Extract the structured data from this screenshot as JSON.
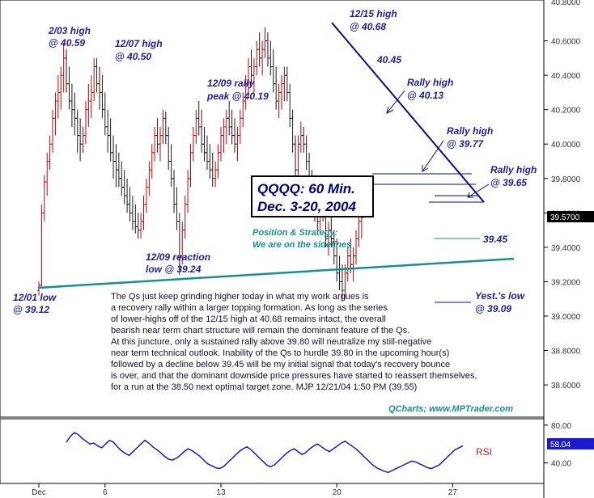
{
  "chart_data": [
    {
      "type": "ohlc",
      "title": "QQQQ: 60 Min.",
      "subtitle": "Dec. 3-20, 2004",
      "ylim": [
        38.45,
        40.8
      ],
      "y_ticks": [
        "40.6000",
        "40.4000",
        "40.2000",
        "40.0000",
        "39.8000",
        "39.6000",
        "39.4000",
        "39.2000",
        "39.0000",
        "38.8000",
        "38.6000"
      ],
      "y_tick_values": [
        40.6,
        40.4,
        40.2,
        40.0,
        39.8,
        39.6,
        39.4,
        39.2,
        39.0,
        38.8,
        38.6
      ],
      "top_tick_partial": "40.8000",
      "last_price": "39.5700",
      "x_ticks": [
        "Dec",
        "6",
        "13",
        "20",
        "27"
      ],
      "x_tick_bars": [
        0,
        24,
        66,
        108,
        150
      ],
      "bars_total": 160,
      "series": [
        {
          "points": [
            [
              39.15,
              39.2,
              39.12,
              39.18
            ],
            [
              39.18,
              39.65,
              39.17,
              39.6
            ],
            [
              39.6,
              39.82,
              39.55,
              39.78
            ],
            [
              39.78,
              39.95,
              39.7,
              39.9
            ],
            [
              39.9,
              40.05,
              39.85,
              40.0
            ],
            [
              40.0,
              40.2,
              39.95,
              40.15
            ],
            [
              40.15,
              40.3,
              40.05,
              40.25
            ],
            [
              40.25,
              40.4,
              40.15,
              40.3
            ],
            [
              40.3,
              40.45,
              40.2,
              40.4
            ],
            [
              40.4,
              40.59,
              40.3,
              40.5
            ],
            [
              40.5,
              40.55,
              40.3,
              40.35
            ],
            [
              40.35,
              40.45,
              40.2,
              40.25
            ],
            [
              40.25,
              40.35,
              40.1,
              40.2
            ],
            [
              40.2,
              40.3,
              40.05,
              40.15
            ],
            [
              40.15,
              40.2,
              39.95,
              40.05
            ],
            [
              40.05,
              40.15,
              39.9,
              40.0
            ],
            [
              40.0,
              40.1,
              39.95,
              40.05
            ],
            [
              40.05,
              40.25,
              40.0,
              40.2
            ],
            [
              40.2,
              40.35,
              40.1,
              40.25
            ],
            [
              40.25,
              40.4,
              40.15,
              40.3
            ],
            [
              40.3,
              40.5,
              40.25,
              40.45
            ],
            [
              40.45,
              40.5,
              40.3,
              40.35
            ],
            [
              40.35,
              40.45,
              40.2,
              40.3
            ],
            [
              40.3,
              40.4,
              40.15,
              40.2
            ],
            [
              40.2,
              40.3,
              40.05,
              40.1
            ],
            [
              40.1,
              40.2,
              39.95,
              40.05
            ],
            [
              40.05,
              40.15,
              39.9,
              39.95
            ],
            [
              39.95,
              40.05,
              39.8,
              39.9
            ],
            [
              39.9,
              40.0,
              39.75,
              39.85
            ],
            [
              39.85,
              39.95,
              39.75,
              39.8
            ],
            [
              39.8,
              39.9,
              39.7,
              39.75
            ],
            [
              39.75,
              39.85,
              39.65,
              39.7
            ],
            [
              39.7,
              39.8,
              39.6,
              39.65
            ],
            [
              39.65,
              39.75,
              39.55,
              39.6
            ],
            [
              39.6,
              39.7,
              39.5,
              39.55
            ],
            [
              39.55,
              39.65,
              39.48,
              39.52
            ],
            [
              39.52,
              39.6,
              39.45,
              39.5
            ],
            [
              39.5,
              39.6,
              39.45,
              39.55
            ],
            [
              39.55,
              39.7,
              39.5,
              39.65
            ],
            [
              39.65,
              39.8,
              39.6,
              39.75
            ],
            [
              39.75,
              39.9,
              39.7,
              39.85
            ],
            [
              39.85,
              40.0,
              39.8,
              39.95
            ],
            [
              39.95,
              40.1,
              39.9,
              40.05
            ],
            [
              40.05,
              40.15,
              39.95,
              40.0
            ],
            [
              40.0,
              40.1,
              39.9,
              40.05
            ],
            [
              40.05,
              40.2,
              40.0,
              40.15
            ],
            [
              40.15,
              40.19,
              40.0,
              40.05
            ],
            [
              40.05,
              40.1,
              39.85,
              39.9
            ],
            [
              39.9,
              40.0,
              39.75,
              39.8
            ],
            [
              39.8,
              39.85,
              39.6,
              39.65
            ],
            [
              39.65,
              39.75,
              39.5,
              39.55
            ],
            [
              39.55,
              39.6,
              39.24,
              39.35
            ],
            [
              39.35,
              39.55,
              39.3,
              39.5
            ],
            [
              39.5,
              39.7,
              39.45,
              39.65
            ],
            [
              39.65,
              39.85,
              39.6,
              39.8
            ],
            [
              39.8,
              40.0,
              39.75,
              39.95
            ],
            [
              39.95,
              40.1,
              39.9,
              40.05
            ],
            [
              40.05,
              40.2,
              40.0,
              40.15
            ],
            [
              40.15,
              40.25,
              40.05,
              40.1
            ],
            [
              40.1,
              40.2,
              39.95,
              40.0
            ],
            [
              40.0,
              40.1,
              39.9,
              39.95
            ],
            [
              39.95,
              40.05,
              39.85,
              39.9
            ],
            [
              39.9,
              40.0,
              39.8,
              39.85
            ],
            [
              39.85,
              39.95,
              39.75,
              39.8
            ],
            [
              39.8,
              39.9,
              39.75,
              39.85
            ],
            [
              39.85,
              40.0,
              39.8,
              39.95
            ],
            [
              39.95,
              40.1,
              39.9,
              40.05
            ],
            [
              40.05,
              40.15,
              39.95,
              40.1
            ],
            [
              40.1,
              40.2,
              40.0,
              40.15
            ],
            [
              40.15,
              40.25,
              40.05,
              40.1
            ],
            [
              40.1,
              40.2,
              40.0,
              40.05
            ],
            [
              40.05,
              40.15,
              39.95,
              40.0
            ],
            [
              40.0,
              40.1,
              39.9,
              40.05
            ],
            [
              40.05,
              40.2,
              40.0,
              40.15
            ],
            [
              40.15,
              40.3,
              40.1,
              40.25
            ],
            [
              40.25,
              40.4,
              40.2,
              40.35
            ],
            [
              40.35,
              40.5,
              40.3,
              40.45
            ],
            [
              40.45,
              40.55,
              40.35,
              40.4
            ],
            [
              40.4,
              40.5,
              40.3,
              40.45
            ],
            [
              40.45,
              40.6,
              40.4,
              40.55
            ],
            [
              40.55,
              40.65,
              40.45,
              40.5
            ],
            [
              40.5,
              40.6,
              40.4,
              40.55
            ],
            [
              40.55,
              40.68,
              40.5,
              40.6
            ],
            [
              40.6,
              40.65,
              40.45,
              40.5
            ],
            [
              40.5,
              40.6,
              40.4,
              40.45
            ],
            [
              40.45,
              40.55,
              40.3,
              40.35
            ],
            [
              40.35,
              40.45,
              40.2,
              40.25
            ],
            [
              40.25,
              40.35,
              40.15,
              40.3
            ],
            [
              40.3,
              40.4,
              40.2,
              40.35
            ],
            [
              40.35,
              40.45,
              40.25,
              40.4
            ],
            [
              40.4,
              40.45,
              40.25,
              40.3
            ],
            [
              40.3,
              40.35,
              40.1,
              40.15
            ],
            [
              40.15,
              40.2,
              39.95,
              40.0
            ],
            [
              40.0,
              40.05,
              39.8,
              39.85
            ],
            [
              39.85,
              40.05,
              39.8,
              40.0
            ],
            [
              40.0,
              40.13,
              39.95,
              40.05
            ],
            [
              40.05,
              40.1,
              39.95,
              40.0
            ],
            [
              40.0,
              40.05,
              39.85,
              39.9
            ],
            [
              39.9,
              39.95,
              39.75,
              39.8
            ],
            [
              39.8,
              39.85,
              39.65,
              39.7
            ],
            [
              39.7,
              39.75,
              39.55,
              39.6
            ],
            [
              39.6,
              39.7,
              39.5,
              39.55
            ],
            [
              39.55,
              39.77,
              39.5,
              39.7
            ],
            [
              39.7,
              39.75,
              39.55,
              39.6
            ],
            [
              39.6,
              39.65,
              39.4,
              39.45
            ],
            [
              39.45,
              39.55,
              39.35,
              39.5
            ],
            [
              39.5,
              39.6,
              39.4,
              39.45
            ],
            [
              39.45,
              39.5,
              39.3,
              39.35
            ],
            [
              39.35,
              39.45,
              39.2,
              39.25
            ],
            [
              39.25,
              39.35,
              39.15,
              39.2
            ],
            [
              39.2,
              39.3,
              39.09,
              39.15
            ],
            [
              39.15,
              39.3,
              39.1,
              39.25
            ],
            [
              39.25,
              39.4,
              39.2,
              39.35
            ],
            [
              39.35,
              39.45,
              39.25,
              39.3
            ],
            [
              39.3,
              39.4,
              39.2,
              39.35
            ],
            [
              39.35,
              39.5,
              39.3,
              39.45
            ],
            [
              39.45,
              39.65,
              39.4,
              39.55
            ],
            [
              39.55,
              39.65,
              39.45,
              39.57
            ]
          ]
        }
      ]
    },
    {
      "type": "line",
      "title": "RSI",
      "ylim": [
        20,
        85
      ],
      "y_ticks": [
        "80.00",
        "40.00"
      ],
      "y_tick_values": [
        80,
        40
      ],
      "last_value": "58.04",
      "series": [
        {
          "values": [
            62,
            68,
            72,
            70,
            66,
            63,
            60,
            61,
            58,
            56,
            60,
            64,
            62,
            57,
            53,
            50,
            48,
            52,
            56,
            60,
            64,
            61,
            57,
            54,
            51,
            47,
            44,
            43,
            45,
            48,
            52,
            55,
            53,
            50,
            47,
            43,
            39,
            37,
            35,
            34,
            36,
            40,
            44,
            48,
            52,
            55,
            57,
            54,
            50,
            46,
            42,
            38,
            36,
            38,
            42,
            46,
            50,
            53,
            55,
            52,
            49,
            51,
            55,
            58,
            60,
            57,
            54,
            52,
            55,
            58,
            61,
            63,
            60,
            57,
            54,
            50,
            46,
            42,
            38,
            35,
            33,
            31,
            30,
            32,
            34,
            36,
            38,
            40,
            42,
            41,
            39,
            37,
            35,
            34,
            36,
            38,
            42,
            46,
            50,
            54,
            56,
            58
          ]
        }
      ]
    }
  ],
  "annotations": {
    "high_0203": [
      "2/03 high",
      "@ 40.59"
    ],
    "high_1207": [
      "12/07 high",
      "@ 40.50"
    ],
    "high_1215": [
      "12/15 high",
      "@ 40.68"
    ],
    "rally_peak_1209": [
      "12/09 rally",
      "peak @ 40.19"
    ],
    "level_4045": "40.45",
    "rally_high_4013": [
      "Rally high",
      "@ 40.13"
    ],
    "rally_high_3977": [
      "Rally high",
      "@ 39.77"
    ],
    "rally_high_3965": [
      "Rally high",
      "@ 39.65"
    ],
    "level_3945": "39.45",
    "reaction_low_1209": [
      "12/09 reaction",
      "low @ 39.24"
    ],
    "low_1201": [
      "12/01 low",
      "@ 39.12"
    ],
    "yest_low": [
      "Yest.'s low",
      "@ 39.09"
    ]
  },
  "title_box": [
    "QQQQ: 60 Min.",
    "Dec. 3-20, 2004"
  ],
  "position_strategy": [
    "Position & Strategy:",
    "We are on the sidelines"
  ],
  "commentary": [
    "The Qs just keep grinding higher today in what my work argues is",
    "a recovery rally within a larger topping formation. As long as the series",
    "of lower-highs off of the 12/15 high at 40.68 remains intact, the overall",
    "bearish near term chart structure will remain the dominant feature of the Qs.",
    "At this juncture, only a sustained rally above 39.80 will neutralize my still-negative",
    "near term technical outlook. Inability of the Qs to hurdle 39.80 in the upcoming hour(s)",
    "followed by a decline below 39.45 will be my initial signal that today's recovery bounce",
    "is over, and that the dominant downside price pressures have started to reassert themselves,",
    "for a run at the 38.50 next optimal target zone. MJP 12/21/04 1:50 PM (39.55)"
  ],
  "credit": "QCharts; www.MPTrader.com",
  "rsi_label": "RSI",
  "colors": {
    "up_bar": "#cc0000",
    "down_bar": "#1a1a1a",
    "doji_bar": "#e6c200",
    "downtrend": "#0a0a8a",
    "neckline": "#1a8f8f",
    "rsi_line": "#1a1ad0",
    "annotation": "#1f1f9f",
    "price_flag": "#000000"
  }
}
